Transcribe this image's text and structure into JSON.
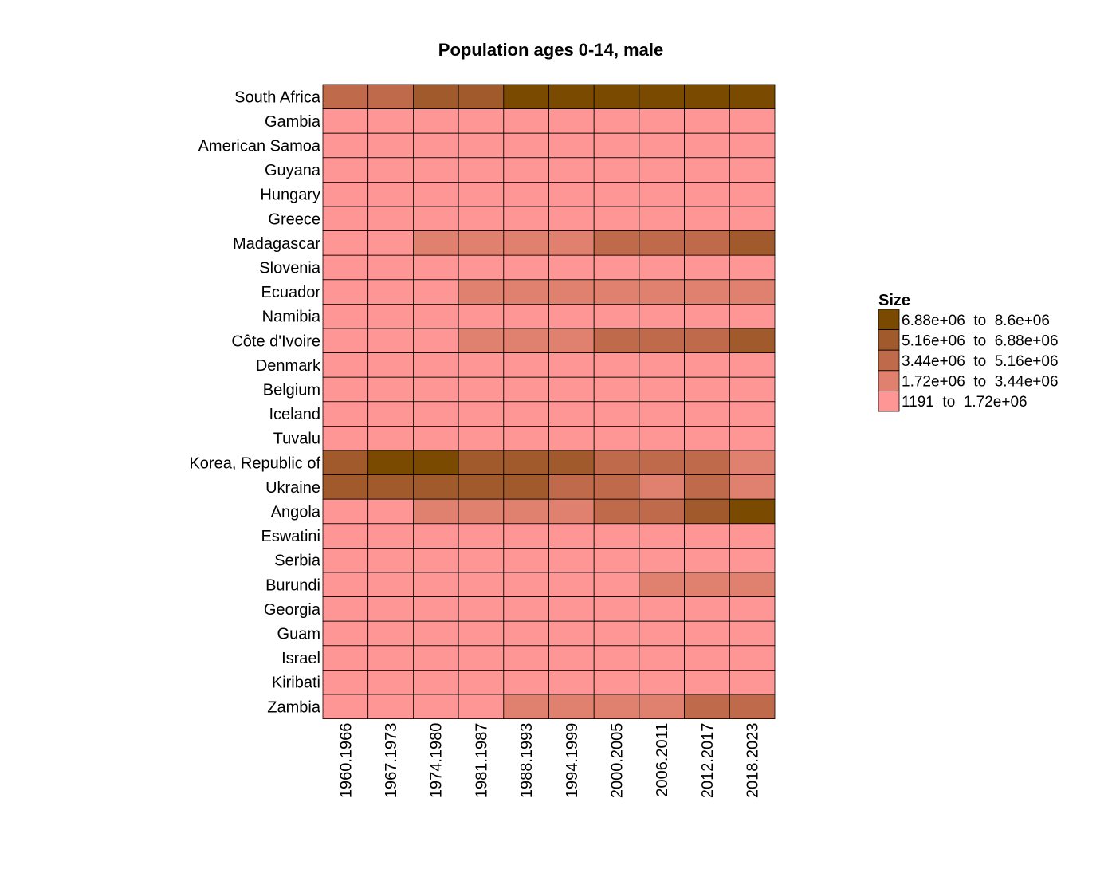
{
  "chart_data": {
    "type": "heatmap",
    "title": "Population ages 0-14, male",
    "rows": [
      "South Africa",
      "Gambia",
      "American Samoa",
      "Guyana",
      "Hungary",
      "Greece",
      "Madagascar",
      "Slovenia",
      "Ecuador",
      "Namibia",
      "Côte d'Ivoire",
      "Denmark",
      "Belgium",
      "Iceland",
      "Tuvalu",
      "Korea, Republic of",
      "Ukraine",
      "Angola",
      "Eswatini",
      "Serbia",
      "Burundi",
      "Georgia",
      "Guam",
      "Israel",
      "Kiribati",
      "Zambia"
    ],
    "columns": [
      "1960.1966",
      "1967.1973",
      "1974.1980",
      "1981.1987",
      "1988.1993",
      "1994.1999",
      "2000.2005",
      "2006.2011",
      "2012.2017",
      "2018.2023"
    ],
    "bin_index": [
      [
        2,
        2,
        3,
        3,
        4,
        4,
        4,
        4,
        4,
        4
      ],
      [
        0,
        0,
        0,
        0,
        0,
        0,
        0,
        0,
        0,
        0
      ],
      [
        0,
        0,
        0,
        0,
        0,
        0,
        0,
        0,
        0,
        0
      ],
      [
        0,
        0,
        0,
        0,
        0,
        0,
        0,
        0,
        0,
        0
      ],
      [
        0,
        0,
        0,
        0,
        0,
        0,
        0,
        0,
        0,
        0
      ],
      [
        0,
        0,
        0,
        0,
        0,
        0,
        0,
        0,
        0,
        0
      ],
      [
        0,
        0,
        1,
        1,
        1,
        1,
        2,
        2,
        2,
        3
      ],
      [
        0,
        0,
        0,
        0,
        0,
        0,
        0,
        0,
        0,
        0
      ],
      [
        0,
        0,
        0,
        1,
        1,
        1,
        1,
        1,
        1,
        1
      ],
      [
        0,
        0,
        0,
        0,
        0,
        0,
        0,
        0,
        0,
        0
      ],
      [
        0,
        0,
        0,
        1,
        1,
        1,
        2,
        2,
        2,
        3
      ],
      [
        0,
        0,
        0,
        0,
        0,
        0,
        0,
        0,
        0,
        0
      ],
      [
        0,
        0,
        0,
        0,
        0,
        0,
        0,
        0,
        0,
        0
      ],
      [
        0,
        0,
        0,
        0,
        0,
        0,
        0,
        0,
        0,
        0
      ],
      [
        0,
        0,
        0,
        0,
        0,
        0,
        0,
        0,
        0,
        0
      ],
      [
        3,
        4,
        4,
        3,
        3,
        3,
        2,
        2,
        2,
        1
      ],
      [
        3,
        3,
        3,
        3,
        3,
        2,
        2,
        1,
        2,
        1
      ],
      [
        0,
        0,
        1,
        1,
        1,
        1,
        2,
        2,
        3,
        4
      ],
      [
        0,
        0,
        0,
        0,
        0,
        0,
        0,
        0,
        0,
        0
      ],
      [
        0,
        0,
        0,
        0,
        0,
        0,
        0,
        0,
        0,
        0
      ],
      [
        0,
        0,
        0,
        0,
        0,
        0,
        0,
        1,
        1,
        1
      ],
      [
        0,
        0,
        0,
        0,
        0,
        0,
        0,
        0,
        0,
        0
      ],
      [
        0,
        0,
        0,
        0,
        0,
        0,
        0,
        0,
        0,
        0
      ],
      [
        0,
        0,
        0,
        0,
        0,
        0,
        0,
        0,
        0,
        0
      ],
      [
        0,
        0,
        0,
        0,
        0,
        0,
        0,
        0,
        0,
        0
      ],
      [
        0,
        0,
        0,
        0,
        1,
        1,
        1,
        1,
        2,
        2
      ]
    ],
    "legend": {
      "title": "Size",
      "placement": "right",
      "bins": [
        {
          "label": "1191  to  1.72e+06",
          "color": "#FF9696"
        },
        {
          "label": "1.72e+06  to  3.44e+06",
          "color": "#E0806E"
        },
        {
          "label": "3.44e+06  to  5.16e+06",
          "color": "#C06A4C"
        },
        {
          "label": "5.16e+06  to  6.88e+06",
          "color": "#A05A2C"
        },
        {
          "label": "6.88e+06  to  8.6e+06",
          "color": "#7A4A00"
        }
      ]
    },
    "grid": false
  }
}
